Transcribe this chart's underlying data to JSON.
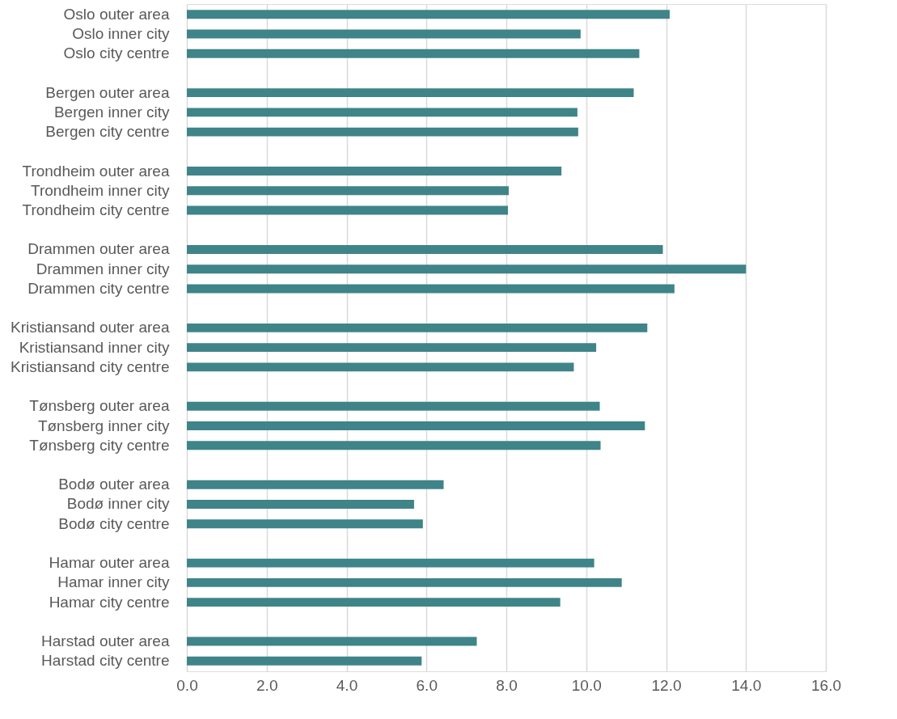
{
  "chart_data": {
    "type": "bar",
    "orientation": "horizontal",
    "categories": [
      "Oslo outer area",
      "Oslo inner city",
      "Oslo city centre",
      null,
      "Bergen outer area",
      "Bergen inner city",
      "Bergen city centre",
      null,
      "Trondheim outer area",
      "Trondheim inner city",
      "Trondheim city centre",
      null,
      "Drammen outer area",
      "Drammen inner city",
      "Drammen city centre",
      null,
      "Kristiansand outer area",
      "Kristiansand inner city",
      "Kristiansand city centre",
      null,
      "Tønsberg outer area",
      "Tønsberg inner city",
      "Tønsberg city centre",
      null,
      "Bodø outer area",
      "Bodø inner city",
      "Bodø city centre",
      null,
      "Hamar outer area",
      "Hamar inner city",
      "Hamar city centre",
      null,
      "Harstad outer area",
      "Harstad city centre"
    ],
    "values": [
      12.09,
      9.86,
      11.33,
      null,
      11.19,
      9.78,
      9.8,
      null,
      9.38,
      8.06,
      8.04,
      null,
      11.92,
      14.0,
      12.21,
      null,
      11.53,
      10.25,
      9.69,
      null,
      10.34,
      11.47,
      10.36,
      null,
      6.43,
      5.69,
      5.91,
      null,
      10.2,
      10.89,
      9.35,
      null,
      7.26,
      5.88
    ],
    "color": "#3f8489",
    "xlim": [
      0,
      16
    ],
    "xticks": [
      {
        "value": 0,
        "label": "0.0"
      },
      {
        "value": 2,
        "label": "2.0"
      },
      {
        "value": 4,
        "label": "4.0"
      },
      {
        "value": 6,
        "label": "6.0"
      },
      {
        "value": 8,
        "label": "8.0"
      },
      {
        "value": 10,
        "label": "10.0"
      },
      {
        "value": 12,
        "label": "12.0"
      },
      {
        "value": 14,
        "label": "14.0"
      },
      {
        "value": 16,
        "label": "16.0"
      }
    ],
    "grid": "x"
  }
}
